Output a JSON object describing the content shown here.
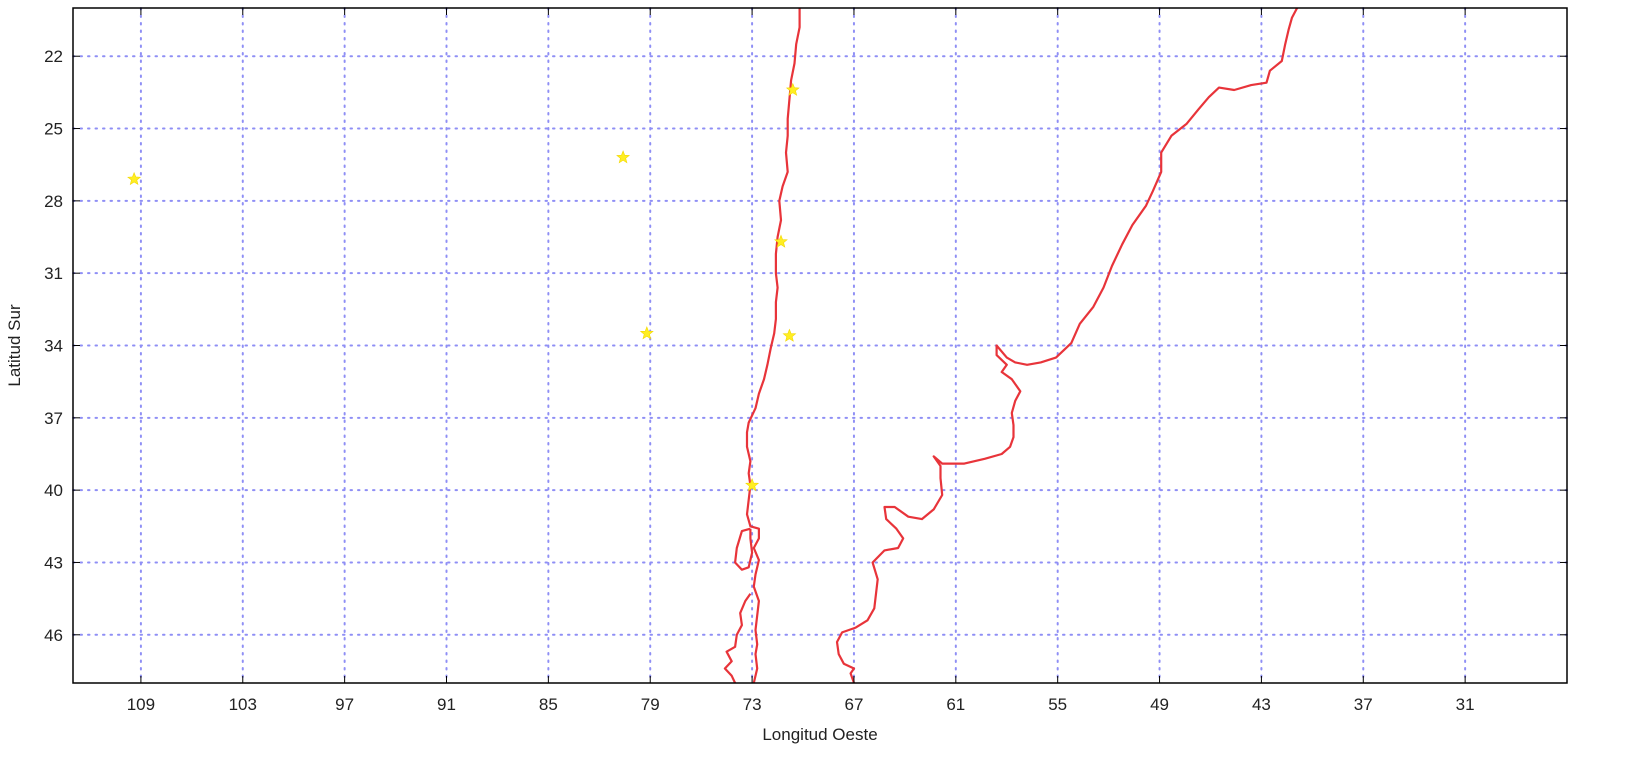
{
  "chart_data": {
    "type": "scatter",
    "title": "",
    "xlabel": "Longitud Oeste",
    "ylabel": "Latitud Sur",
    "xlim": [
      113,
      25
    ],
    "ylim": [
      48,
      20
    ],
    "x_ticks": [
      109,
      103,
      97,
      91,
      85,
      79,
      73,
      67,
      61,
      55,
      49,
      43,
      37,
      31
    ],
    "y_ticks": [
      22,
      25,
      28,
      31,
      34,
      37,
      40,
      43,
      46
    ],
    "grid": true,
    "colors": {
      "coastline": "#e8343a",
      "grid": "#8f8ff5",
      "stations": "#ffee22",
      "frame": "#000000"
    },
    "stations": [
      {
        "lon": 109.4,
        "lat": 27.1
      },
      {
        "lon": 80.6,
        "lat": 26.2
      },
      {
        "lon": 70.6,
        "lat": 23.4
      },
      {
        "lon": 71.3,
        "lat": 29.7
      },
      {
        "lon": 79.2,
        "lat": 33.5
      },
      {
        "lon": 70.8,
        "lat": 33.6
      },
      {
        "lon": 73.0,
        "lat": 39.8
      }
    ],
    "coastlines": [
      {
        "name": "",
        "points": [
          [
            70.2,
            20.0
          ],
          [
            70.2,
            20.8
          ],
          [
            70.4,
            21.5
          ],
          [
            70.5,
            22.3
          ],
          [
            70.7,
            23.0
          ],
          [
            70.8,
            23.8
          ],
          [
            70.9,
            24.6
          ],
          [
            70.9,
            25.3
          ],
          [
            71.0,
            26.0
          ],
          [
            70.9,
            26.8
          ],
          [
            71.2,
            27.4
          ],
          [
            71.4,
            28.0
          ],
          [
            71.3,
            28.8
          ],
          [
            71.5,
            29.5
          ],
          [
            71.6,
            30.2
          ],
          [
            71.6,
            31.0
          ],
          [
            71.5,
            31.6
          ],
          [
            71.6,
            32.2
          ],
          [
            71.6,
            32.9
          ],
          [
            71.7,
            33.5
          ],
          [
            71.9,
            34.1
          ],
          [
            72.1,
            34.8
          ],
          [
            72.3,
            35.4
          ],
          [
            72.6,
            36.0
          ],
          [
            72.8,
            36.6
          ],
          [
            73.2,
            37.2
          ],
          [
            73.3,
            37.6
          ],
          [
            73.3,
            38.2
          ],
          [
            73.1,
            38.8
          ],
          [
            73.2,
            39.3
          ],
          [
            73.1,
            39.8
          ],
          [
            73.2,
            40.4
          ],
          [
            73.3,
            41.0
          ],
          [
            73.1,
            41.5
          ],
          [
            72.6,
            41.6
          ],
          [
            72.6,
            42.0
          ],
          [
            72.9,
            42.4
          ],
          [
            72.6,
            42.9
          ],
          [
            72.8,
            43.5
          ],
          [
            72.9,
            44.0
          ],
          [
            72.6,
            44.6
          ],
          [
            72.7,
            45.2
          ],
          [
            72.8,
            45.8
          ],
          [
            72.7,
            46.4
          ],
          [
            72.8,
            46.8
          ],
          [
            72.7,
            47.4
          ],
          [
            72.9,
            48.0
          ]
        ]
      },
      {
        "name": "",
        "points": [
          [
            73.1,
            41.6
          ],
          [
            73.6,
            41.7
          ],
          [
            73.9,
            42.4
          ],
          [
            74.0,
            43.0
          ],
          [
            73.6,
            43.3
          ],
          [
            73.2,
            43.2
          ],
          [
            73.0,
            42.6
          ],
          [
            73.1,
            42.0
          ],
          [
            73.1,
            41.6
          ]
        ]
      },
      {
        "name": "",
        "points": [
          [
            73.1,
            44.3
          ],
          [
            73.4,
            44.6
          ],
          [
            73.7,
            45.1
          ],
          [
            73.6,
            45.6
          ],
          [
            73.9,
            46.0
          ],
          [
            74.0,
            46.5
          ],
          [
            74.5,
            46.7
          ],
          [
            74.2,
            47.1
          ],
          [
            74.6,
            47.4
          ],
          [
            74.2,
            47.7
          ],
          [
            74.0,
            48.0
          ]
        ]
      },
      {
        "name": "",
        "points": [
          [
            67.0,
            48.0
          ],
          [
            67.2,
            47.6
          ],
          [
            67.0,
            47.4
          ],
          [
            67.6,
            47.2
          ],
          [
            67.9,
            46.8
          ],
          [
            68.0,
            46.3
          ],
          [
            67.7,
            45.9
          ],
          [
            66.9,
            45.7
          ],
          [
            66.2,
            45.4
          ],
          [
            65.8,
            44.9
          ],
          [
            65.7,
            44.3
          ],
          [
            65.6,
            43.7
          ],
          [
            65.9,
            43.0
          ],
          [
            65.2,
            42.5
          ],
          [
            64.4,
            42.4
          ],
          [
            64.1,
            42.0
          ],
          [
            64.5,
            41.6
          ],
          [
            65.1,
            41.2
          ],
          [
            65.2,
            40.7
          ],
          [
            64.6,
            40.7
          ],
          [
            63.8,
            41.1
          ],
          [
            63.0,
            41.2
          ],
          [
            62.3,
            40.8
          ],
          [
            61.8,
            40.2
          ],
          [
            61.9,
            39.5
          ],
          [
            61.9,
            39.0
          ],
          [
            62.3,
            38.6
          ],
          [
            61.8,
            38.9
          ],
          [
            60.5,
            38.9
          ],
          [
            59.3,
            38.7
          ],
          [
            58.3,
            38.5
          ],
          [
            57.8,
            38.2
          ],
          [
            57.6,
            37.8
          ],
          [
            57.6,
            37.3
          ],
          [
            57.7,
            36.8
          ],
          [
            57.5,
            36.3
          ],
          [
            57.2,
            35.9
          ],
          [
            57.7,
            35.4
          ],
          [
            58.3,
            35.1
          ],
          [
            58.0,
            34.8
          ],
          [
            58.6,
            34.4
          ],
          [
            58.6,
            34.0
          ],
          [
            58.0,
            34.5
          ],
          [
            57.5,
            34.7
          ],
          [
            56.8,
            34.8
          ],
          [
            56.0,
            34.7
          ],
          [
            55.1,
            34.5
          ],
          [
            54.2,
            33.9
          ],
          [
            53.7,
            33.1
          ],
          [
            52.9,
            32.4
          ],
          [
            52.3,
            31.6
          ],
          [
            51.8,
            30.7
          ],
          [
            51.2,
            29.8
          ],
          [
            50.6,
            29.0
          ],
          [
            49.8,
            28.2
          ],
          [
            49.4,
            27.6
          ],
          [
            48.9,
            26.8
          ],
          [
            48.9,
            26.0
          ],
          [
            48.3,
            25.3
          ],
          [
            47.4,
            24.8
          ],
          [
            46.7,
            24.2
          ],
          [
            46.1,
            23.7
          ],
          [
            45.5,
            23.3
          ],
          [
            44.6,
            23.4
          ],
          [
            43.6,
            23.2
          ],
          [
            42.7,
            23.1
          ],
          [
            42.5,
            22.6
          ],
          [
            41.8,
            22.2
          ],
          [
            41.6,
            21.5
          ],
          [
            41.4,
            20.9
          ],
          [
            41.2,
            20.4
          ],
          [
            40.9,
            20.0
          ]
        ]
      }
    ]
  }
}
